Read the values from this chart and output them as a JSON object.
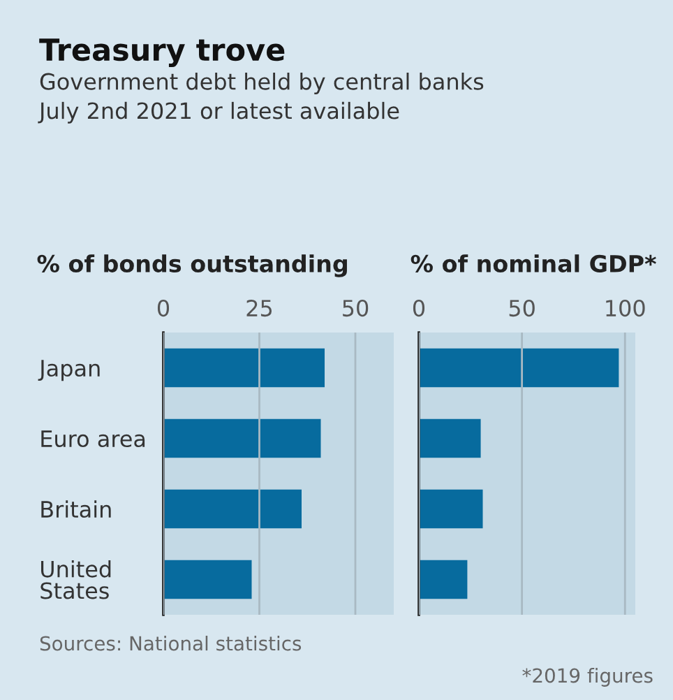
{
  "chart_data": [
    {
      "type": "bar",
      "orientation": "horizontal",
      "title": "Treasury trove",
      "subtitle": "Government debt held by central banks\nJuly 2nd 2021 or latest available",
      "xlabel": "% of bonds outstanding",
      "categories": [
        "Japan",
        "Euro area",
        "Britain",
        "United\nStates"
      ],
      "values": [
        42,
        41,
        36,
        23
      ],
      "color": "#076b9e",
      "xlim": [
        0,
        60
      ],
      "xticks": [
        0,
        25,
        50
      ],
      "grid": "x",
      "annotations": [
        "Sources: National statistics"
      ]
    },
    {
      "type": "bar",
      "orientation": "horizontal",
      "xlabel": "% of nominal GDP*",
      "values": [
        97,
        30,
        31,
        23.5
      ],
      "color": "#076b9e",
      "xlim": [
        0,
        105
      ],
      "xticks": [
        0,
        50,
        100
      ],
      "grid": "x",
      "annotations": [
        "*2019 figures"
      ]
    }
  ]
}
